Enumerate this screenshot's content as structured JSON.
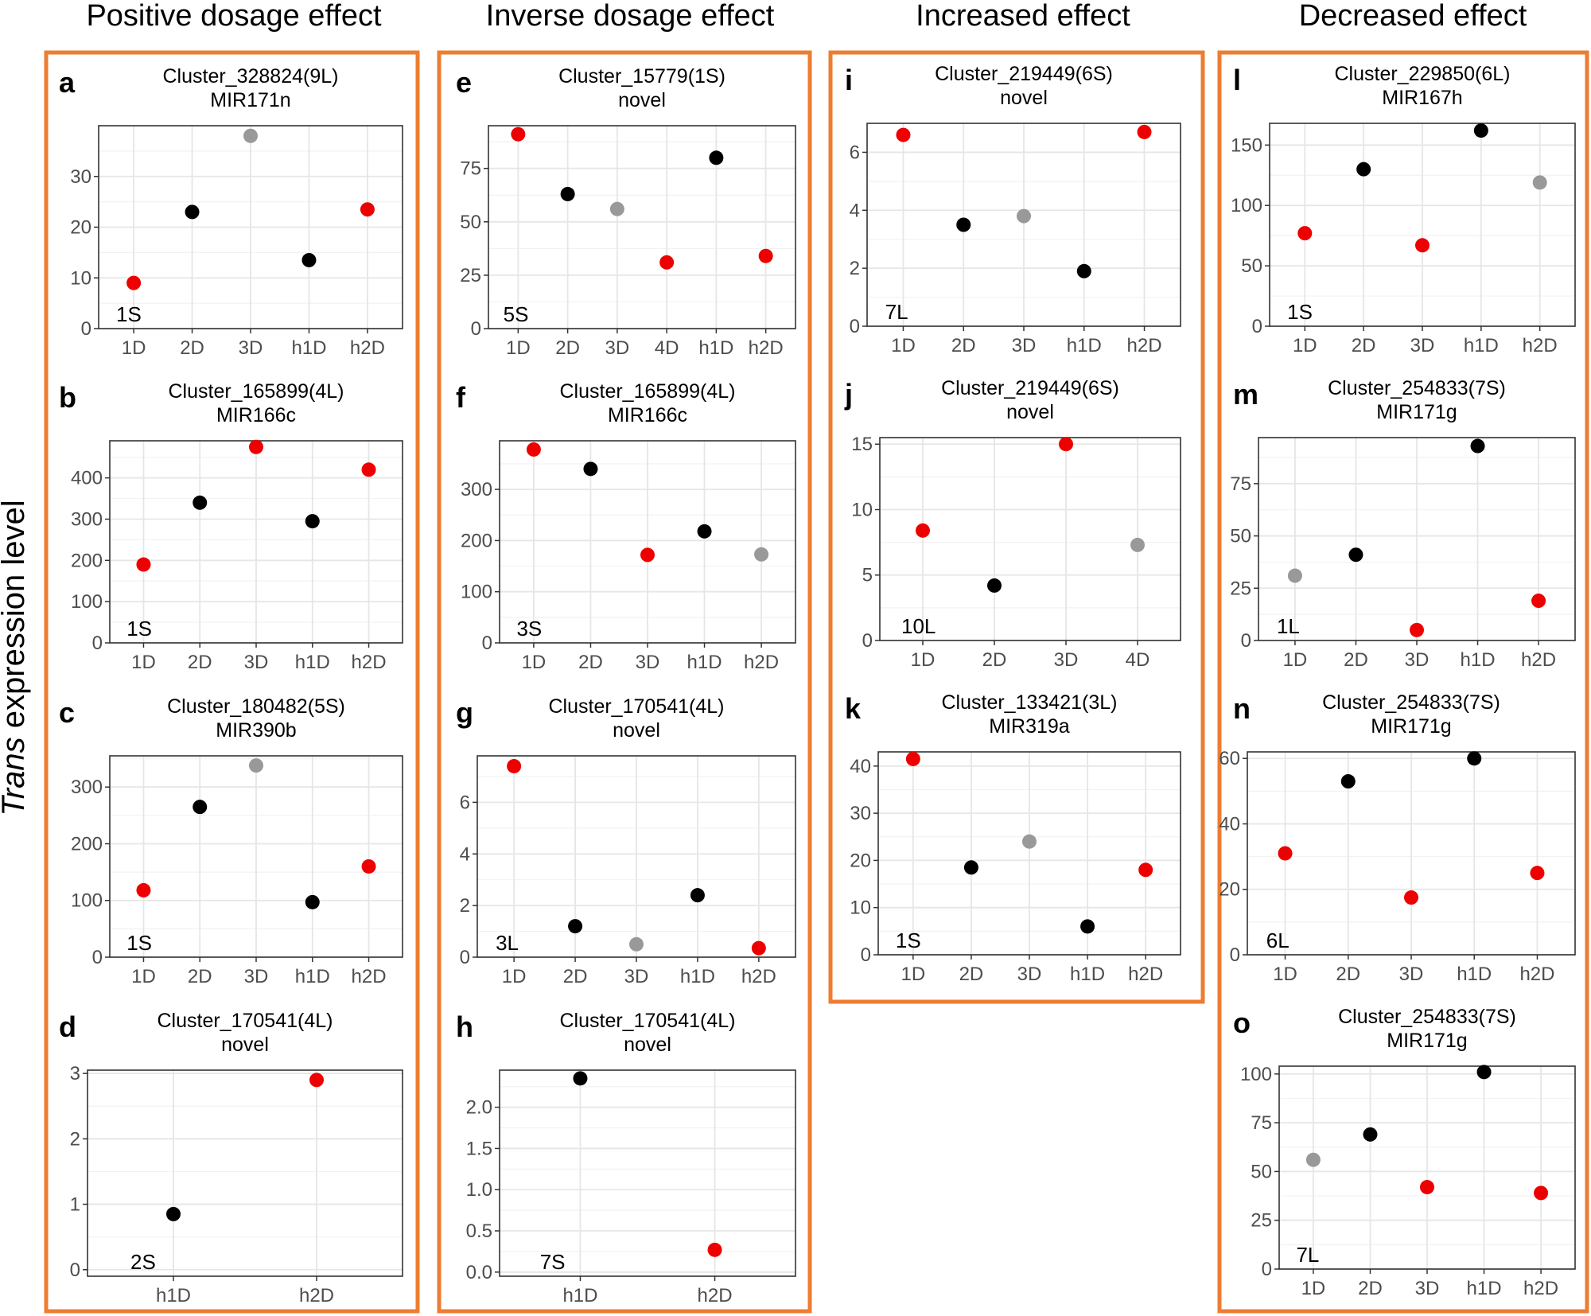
{
  "figure": {
    "ylabel_italic": "Trans",
    "ylabel_rest": " expression level",
    "column_titles": [
      "Positive dosage effect",
      "Inverse dosage effect",
      "Increased effect",
      "Decreased effect"
    ]
  },
  "colors": {
    "red": "#ee0000",
    "black": "#000000",
    "grey": "#999999",
    "frame": "#ed7d31"
  },
  "chart_data": [
    {
      "id": "a",
      "type": "scatter",
      "title": "Cluster_328824(9L)",
      "subtitle": "MIR171n",
      "annotation": "1S",
      "categories": [
        "1D",
        "2D",
        "3D",
        "h1D",
        "h2D"
      ],
      "values": [
        9,
        23,
        38,
        13.5,
        23.5
      ],
      "colors": [
        "red",
        "black",
        "grey",
        "black",
        "red"
      ],
      "ylim": [
        0,
        40
      ],
      "yticks": [
        0,
        10,
        20,
        30
      ],
      "grid": true
    },
    {
      "id": "b",
      "type": "scatter",
      "title": "Cluster_165899(4L)",
      "subtitle": "MIR166c",
      "annotation": "1S",
      "categories": [
        "1D",
        "2D",
        "3D",
        "h1D",
        "h2D"
      ],
      "values": [
        190,
        340,
        475,
        295,
        420
      ],
      "colors": [
        "red",
        "black",
        "red",
        "black",
        "red"
      ],
      "ylim": [
        0,
        490
      ],
      "yticks": [
        0,
        100,
        200,
        300,
        400
      ],
      "grid": true
    },
    {
      "id": "c",
      "type": "scatter",
      "title": "Cluster_180482(5S)",
      "subtitle": "MIR390b",
      "annotation": "1S",
      "categories": [
        "1D",
        "2D",
        "3D",
        "h1D",
        "h2D"
      ],
      "values": [
        118,
        265,
        338,
        97,
        160
      ],
      "colors": [
        "red",
        "black",
        "grey",
        "black",
        "red"
      ],
      "ylim": [
        0,
        355
      ],
      "yticks": [
        0,
        100,
        200,
        300
      ],
      "grid": true
    },
    {
      "id": "d",
      "type": "scatter",
      "title": "Cluster_170541(4L)",
      "subtitle": "novel",
      "annotation": "2S",
      "categories": [
        "h1D",
        "h2D"
      ],
      "values": [
        0.85,
        2.9
      ],
      "colors": [
        "black",
        "red"
      ],
      "ylim": [
        -0.1,
        3.05
      ],
      "yticks": [
        0,
        1,
        2,
        3
      ],
      "grid": true
    },
    {
      "id": "e",
      "type": "scatter",
      "title": "Cluster_15779(1S)",
      "subtitle": "novel",
      "annotation": "5S",
      "categories": [
        "1D",
        "2D",
        "3D",
        "4D",
        "h1D",
        "h2D"
      ],
      "values": [
        91,
        63,
        56,
        31,
        80,
        34
      ],
      "colors": [
        "red",
        "black",
        "grey",
        "red",
        "black",
        "red"
      ],
      "ylim": [
        0,
        95
      ],
      "yticks": [
        0,
        25,
        50,
        75
      ],
      "grid": true
    },
    {
      "id": "f",
      "type": "scatter",
      "title": "Cluster_165899(4L)",
      "subtitle": "MIR166c",
      "annotation": "3S",
      "categories": [
        "1D",
        "2D",
        "3D",
        "h1D",
        "h2D"
      ],
      "values": [
        378,
        340,
        172,
        218,
        173
      ],
      "colors": [
        "red",
        "black",
        "red",
        "black",
        "grey"
      ],
      "ylim": [
        0,
        395
      ],
      "yticks": [
        0,
        100,
        200,
        300
      ],
      "grid": true
    },
    {
      "id": "g",
      "type": "scatter",
      "title": "Cluster_170541(4L)",
      "subtitle": "novel",
      "annotation": "3L",
      "categories": [
        "1D",
        "2D",
        "3D",
        "h1D",
        "h2D"
      ],
      "values": [
        7.4,
        1.2,
        0.5,
        2.4,
        0.35
      ],
      "colors": [
        "red",
        "black",
        "grey",
        "black",
        "red"
      ],
      "ylim": [
        0,
        7.8
      ],
      "yticks": [
        0,
        2,
        4,
        6
      ],
      "grid": true
    },
    {
      "id": "h",
      "type": "scatter",
      "title": "Cluster_170541(4L)",
      "subtitle": "novel",
      "annotation": "7S",
      "categories": [
        "h1D",
        "h2D"
      ],
      "values": [
        2.35,
        0.27
      ],
      "colors": [
        "black",
        "red"
      ],
      "ylim": [
        -0.05,
        2.45
      ],
      "yticks": [
        "0.0",
        "0.5",
        "1.0",
        "1.5",
        "2.0"
      ],
      "grid": true
    },
    {
      "id": "i",
      "type": "scatter",
      "title": "Cluster_219449(6S)",
      "subtitle": "novel",
      "annotation": "7L",
      "categories": [
        "1D",
        "2D",
        "3D",
        "h1D",
        "h2D"
      ],
      "values": [
        6.6,
        3.5,
        3.8,
        1.9,
        6.7
      ],
      "colors": [
        "red",
        "black",
        "grey",
        "black",
        "red"
      ],
      "ylim": [
        0,
        7
      ],
      "yticks": [
        0,
        2,
        4,
        6
      ],
      "grid": true
    },
    {
      "id": "j",
      "type": "scatter",
      "title": "Cluster_219449(6S)",
      "subtitle": "novel",
      "annotation": "10L",
      "categories": [
        "1D",
        "2D",
        "3D",
        "4D"
      ],
      "values": [
        8.4,
        4.2,
        15,
        7.3
      ],
      "colors": [
        "red",
        "black",
        "red",
        "grey"
      ],
      "ylim": [
        0,
        15.5
      ],
      "yticks": [
        0,
        5,
        10,
        15
      ],
      "grid": true
    },
    {
      "id": "k",
      "type": "scatter",
      "title": "Cluster_133421(3L)",
      "subtitle": "MIR319a",
      "annotation": "1S",
      "categories": [
        "1D",
        "2D",
        "3D",
        "h1D",
        "h2D"
      ],
      "values": [
        41.5,
        18.5,
        24,
        6,
        18
      ],
      "colors": [
        "red",
        "black",
        "grey",
        "black",
        "red"
      ],
      "ylim": [
        0,
        43
      ],
      "yticks": [
        0,
        10,
        20,
        30,
        40
      ],
      "grid": true
    },
    {
      "id": "l",
      "type": "scatter",
      "title": "Cluster_229850(6L)",
      "subtitle": "MIR167h",
      "annotation": "1S",
      "categories": [
        "1D",
        "2D",
        "3D",
        "h1D",
        "h2D"
      ],
      "values": [
        77,
        130,
        67,
        162,
        119
      ],
      "colors": [
        "red",
        "black",
        "red",
        "black",
        "grey"
      ],
      "ylim": [
        0,
        168
      ],
      "yticks": [
        0,
        50,
        100,
        150
      ],
      "grid": true
    },
    {
      "id": "m",
      "type": "scatter",
      "title": "Cluster_254833(7S)",
      "subtitle": "MIR171g",
      "annotation": "1L",
      "categories": [
        "1D",
        "2D",
        "3D",
        "h1D",
        "h2D"
      ],
      "values": [
        31,
        41,
        5,
        93,
        19
      ],
      "colors": [
        "grey",
        "black",
        "red",
        "black",
        "red"
      ],
      "ylim": [
        0,
        97
      ],
      "yticks": [
        0,
        25,
        50,
        75
      ],
      "grid": true
    },
    {
      "id": "n",
      "type": "scatter",
      "title": "Cluster_254833(7S)",
      "subtitle": "MIR171g",
      "annotation": "6L",
      "categories": [
        "1D",
        "2D",
        "3D",
        "h1D",
        "h2D"
      ],
      "values": [
        31,
        53,
        17.5,
        60,
        25
      ],
      "colors": [
        "red",
        "black",
        "red",
        "black",
        "red"
      ],
      "ylim": [
        0,
        62
      ],
      "yticks": [
        0,
        20,
        40,
        60
      ],
      "grid": true
    },
    {
      "id": "o",
      "type": "scatter",
      "title": "Cluster_254833(7S)",
      "subtitle": "MIR171g",
      "annotation": "7L",
      "categories": [
        "1D",
        "2D",
        "3D",
        "h1D",
        "h2D"
      ],
      "values": [
        56,
        69,
        42,
        101,
        39
      ],
      "colors": [
        "grey",
        "black",
        "red",
        "black",
        "red"
      ],
      "ylim": [
        0,
        104
      ],
      "yticks": [
        0,
        25,
        50,
        75,
        100
      ],
      "grid": true
    }
  ]
}
